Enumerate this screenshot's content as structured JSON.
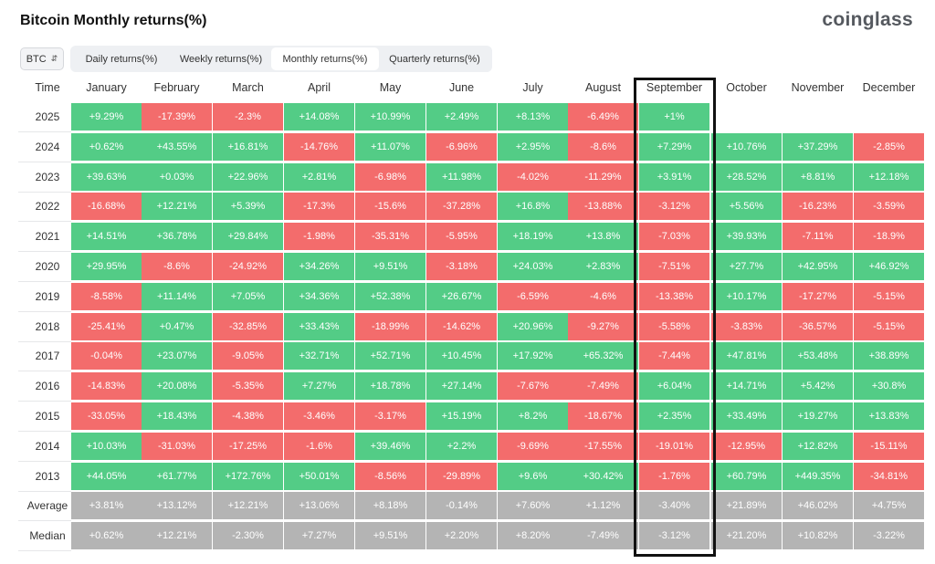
{
  "title": "Bitcoin Monthly returns(%)",
  "brand": "coinglass",
  "asset_selector": {
    "value": "BTC",
    "icon": "chevron-up-down-icon"
  },
  "tabs": [
    {
      "label": "Daily returns(%)",
      "active": false
    },
    {
      "label": "Weekly returns(%)",
      "active": false
    },
    {
      "label": "Monthly returns(%)",
      "active": true
    },
    {
      "label": "Quarterly returns(%)",
      "active": false
    }
  ],
  "colors": {
    "positive": "#53cc86",
    "negative": "#f36c6c",
    "summary": "#b4b4b4",
    "highlight_border": "#111111"
  },
  "chart_data": {
    "type": "heatmap",
    "title": "Bitcoin Monthly returns(%)",
    "corner_label": "Time",
    "columns": [
      "January",
      "February",
      "March",
      "April",
      "May",
      "June",
      "July",
      "August",
      "September",
      "October",
      "November",
      "December"
    ],
    "highlighted_column": "September",
    "rows": [
      {
        "label": "2025",
        "values": [
          "+9.29%",
          "-17.39%",
          "-2.3%",
          "+14.08%",
          "+10.99%",
          "+2.49%",
          "+8.13%",
          "-6.49%",
          "+1%",
          "",
          "",
          ""
        ]
      },
      {
        "label": "2024",
        "values": [
          "+0.62%",
          "+43.55%",
          "+16.81%",
          "-14.76%",
          "+11.07%",
          "-6.96%",
          "+2.95%",
          "-8.6%",
          "+7.29%",
          "+10.76%",
          "+37.29%",
          "-2.85%"
        ]
      },
      {
        "label": "2023",
        "values": [
          "+39.63%",
          "+0.03%",
          "+22.96%",
          "+2.81%",
          "-6.98%",
          "+11.98%",
          "-4.02%",
          "-11.29%",
          "+3.91%",
          "+28.52%",
          "+8.81%",
          "+12.18%"
        ]
      },
      {
        "label": "2022",
        "values": [
          "-16.68%",
          "+12.21%",
          "+5.39%",
          "-17.3%",
          "-15.6%",
          "-37.28%",
          "+16.8%",
          "-13.88%",
          "-3.12%",
          "+5.56%",
          "-16.23%",
          "-3.59%"
        ]
      },
      {
        "label": "2021",
        "values": [
          "+14.51%",
          "+36.78%",
          "+29.84%",
          "-1.98%",
          "-35.31%",
          "-5.95%",
          "+18.19%",
          "+13.8%",
          "-7.03%",
          "+39.93%",
          "-7.11%",
          "-18.9%"
        ]
      },
      {
        "label": "2020",
        "values": [
          "+29.95%",
          "-8.6%",
          "-24.92%",
          "+34.26%",
          "+9.51%",
          "-3.18%",
          "+24.03%",
          "+2.83%",
          "-7.51%",
          "+27.7%",
          "+42.95%",
          "+46.92%"
        ]
      },
      {
        "label": "2019",
        "values": [
          "-8.58%",
          "+11.14%",
          "+7.05%",
          "+34.36%",
          "+52.38%",
          "+26.67%",
          "-6.59%",
          "-4.6%",
          "-13.38%",
          "+10.17%",
          "-17.27%",
          "-5.15%"
        ]
      },
      {
        "label": "2018",
        "values": [
          "-25.41%",
          "+0.47%",
          "-32.85%",
          "+33.43%",
          "-18.99%",
          "-14.62%",
          "+20.96%",
          "-9.27%",
          "-5.58%",
          "-3.83%",
          "-36.57%",
          "-5.15%"
        ]
      },
      {
        "label": "2017",
        "values": [
          "-0.04%",
          "+23.07%",
          "-9.05%",
          "+32.71%",
          "+52.71%",
          "+10.45%",
          "+17.92%",
          "+65.32%",
          "-7.44%",
          "+47.81%",
          "+53.48%",
          "+38.89%"
        ]
      },
      {
        "label": "2016",
        "values": [
          "-14.83%",
          "+20.08%",
          "-5.35%",
          "+7.27%",
          "+18.78%",
          "+27.14%",
          "-7.67%",
          "-7.49%",
          "+6.04%",
          "+14.71%",
          "+5.42%",
          "+30.8%"
        ]
      },
      {
        "label": "2015",
        "values": [
          "-33.05%",
          "+18.43%",
          "-4.38%",
          "-3.46%",
          "-3.17%",
          "+15.19%",
          "+8.2%",
          "-18.67%",
          "+2.35%",
          "+33.49%",
          "+19.27%",
          "+13.83%"
        ]
      },
      {
        "label": "2014",
        "values": [
          "+10.03%",
          "-31.03%",
          "-17.25%",
          "-1.6%",
          "+39.46%",
          "+2.2%",
          "-9.69%",
          "-17.55%",
          "-19.01%",
          "-12.95%",
          "+12.82%",
          "-15.11%"
        ]
      },
      {
        "label": "2013",
        "values": [
          "+44.05%",
          "+61.77%",
          "+172.76%",
          "+50.01%",
          "-8.56%",
          "-29.89%",
          "+9.6%",
          "+30.42%",
          "-1.76%",
          "+60.79%",
          "+449.35%",
          "-34.81%"
        ]
      }
    ],
    "summary_rows": [
      {
        "label": "Average",
        "values": [
          "+3.81%",
          "+13.12%",
          "+12.21%",
          "+13.06%",
          "+8.18%",
          "-0.14%",
          "+7.60%",
          "+1.12%",
          "-3.40%",
          "+21.89%",
          "+46.02%",
          "+4.75%"
        ]
      },
      {
        "label": "Median",
        "values": [
          "+0.62%",
          "+12.21%",
          "-2.30%",
          "+7.27%",
          "+9.51%",
          "+2.20%",
          "+8.20%",
          "-7.49%",
          "-3.12%",
          "+21.20%",
          "+10.82%",
          "-3.22%"
        ]
      }
    ]
  }
}
